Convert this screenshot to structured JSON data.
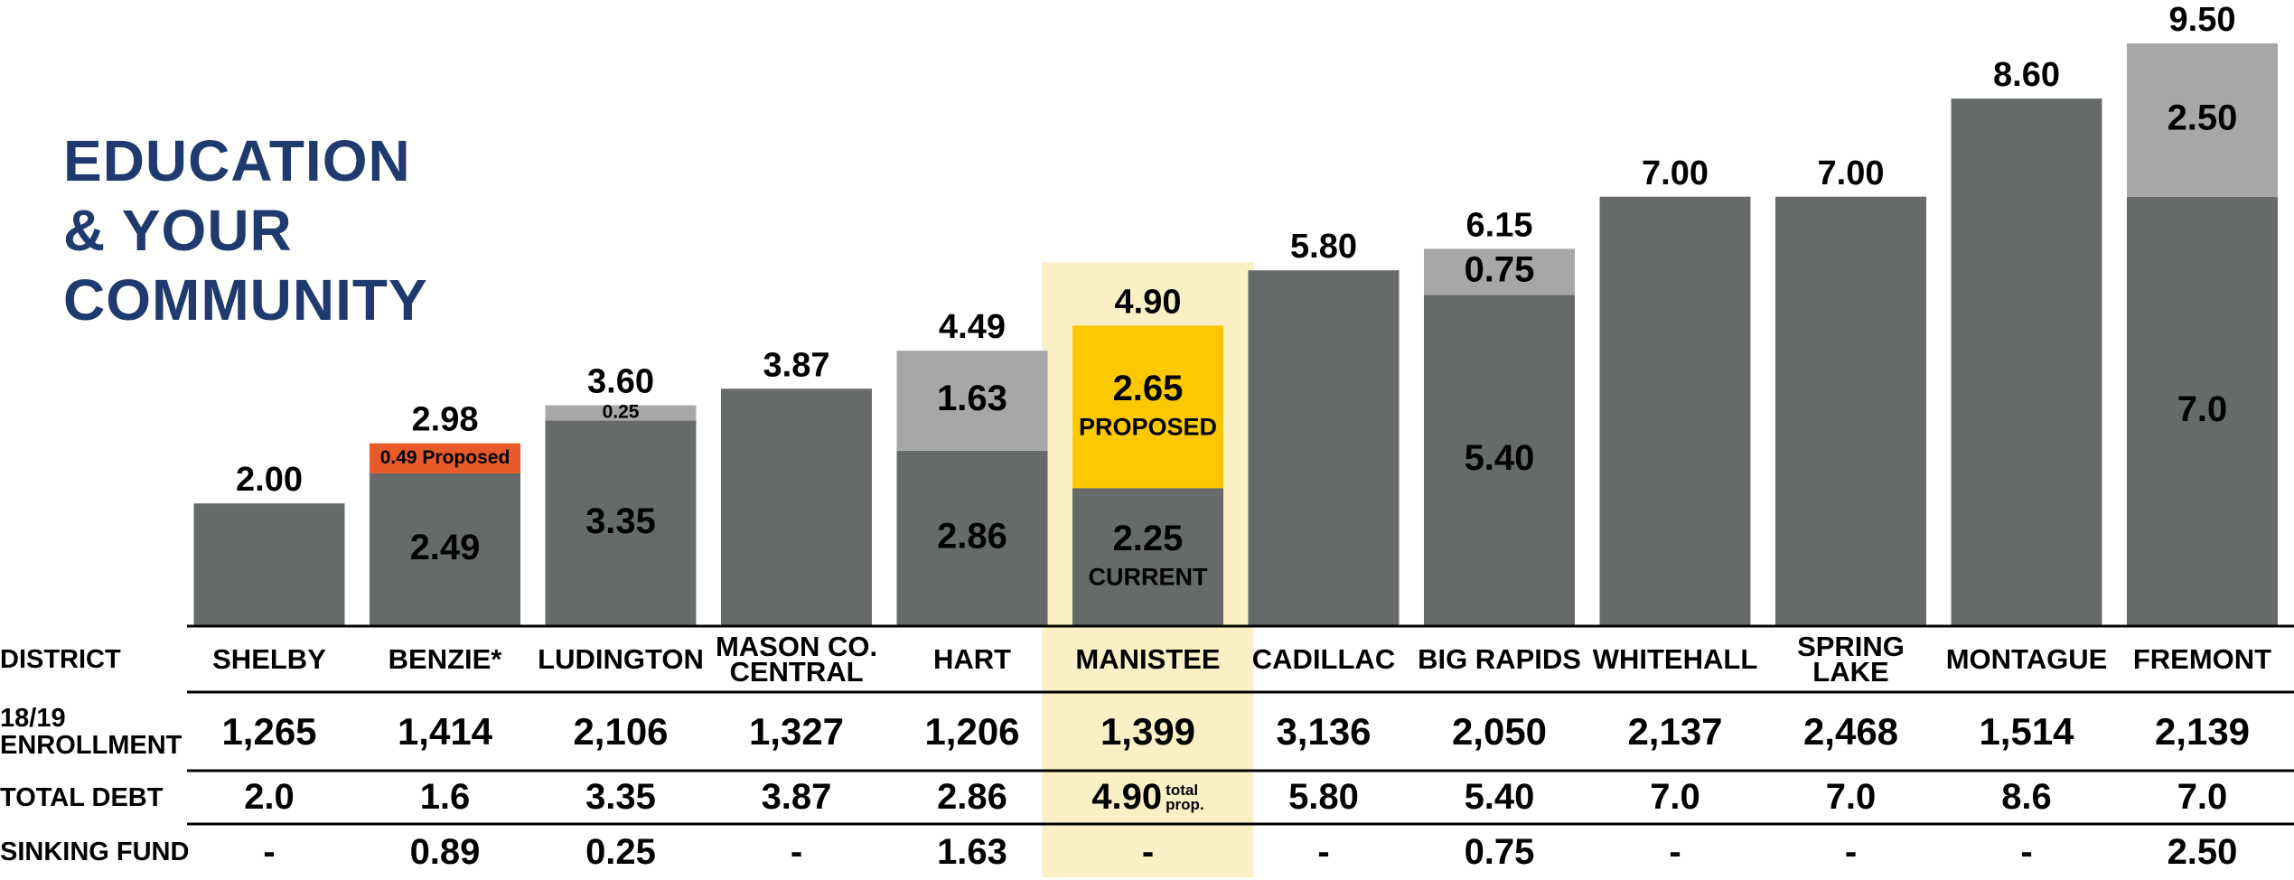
{
  "title": "EDUCATION\n& YOUR\nCOMMUNITY",
  "chart_data": {
    "type": "bar",
    "stacked": true,
    "categories": [
      "SHELBY",
      "BENZIE*",
      "LUDINGTON",
      "MASON CO.\nCENTRAL",
      "HART",
      "MANISTEE",
      "CADILLAC",
      "BIG RAPIDS",
      "WHITEHALL",
      "SPRING\nLAKE",
      "MONTAGUE",
      "FREMONT"
    ],
    "totals": [
      "2.00",
      "2.98",
      "3.60",
      "3.87",
      "4.49",
      "4.90",
      "5.80",
      "6.15",
      "7.00",
      "7.00",
      "8.60",
      "9.50"
    ],
    "series": [
      {
        "color": "#666b6a",
        "label_color": "#000000",
        "values": [
          2.0,
          2.49,
          3.35,
          3.87,
          2.86,
          2.25,
          5.8,
          5.4,
          7.0,
          7.0,
          8.6,
          7.0
        ],
        "value_labels": [
          null,
          "2.49",
          "3.35",
          null,
          "2.86",
          "2.25",
          null,
          "5.40",
          null,
          null,
          null,
          "7.0"
        ],
        "notes": [
          null,
          null,
          null,
          null,
          null,
          "CURRENT",
          null,
          null,
          null,
          null,
          null,
          null
        ]
      },
      {
        "color": "#a7a7aa",
        "colors": [
          null,
          "#e85a2a",
          null,
          null,
          null,
          "#fcc800",
          null,
          null,
          null,
          null,
          null,
          null
        ],
        "label_color": "#000000",
        "values": [
          null,
          0.49,
          0.25,
          null,
          1.63,
          2.65,
          null,
          0.75,
          null,
          null,
          null,
          2.5
        ],
        "value_labels": [
          null,
          "0.49 Proposed",
          "0.25",
          null,
          "1.63",
          "2.65",
          null,
          "0.75",
          null,
          null,
          null,
          "2.50"
        ],
        "notes": [
          null,
          null,
          null,
          null,
          null,
          "PROPOSED",
          null,
          null,
          null,
          null,
          null,
          null
        ]
      }
    ],
    "highlight": 5,
    "highlight_color": "#fbefc5"
  },
  "table": {
    "row_headers": [
      "DISTRICT",
      "18/19\nENROLLMENT",
      "TOTAL DEBT",
      "SINKING FUND"
    ],
    "enrollment": [
      "1,265",
      "1,414",
      "2,106",
      "1,327",
      "1,206",
      "1,399",
      "3,136",
      "2,050",
      "2,137",
      "2,468",
      "1,514",
      "2,139"
    ],
    "total_debt": [
      "2.0",
      "1.6",
      "3.35",
      "3.87",
      "2.86",
      "4.90",
      "5.80",
      "5.40",
      "7.0",
      "7.0",
      "8.6",
      "7.0"
    ],
    "total_debt_notes": [
      null,
      null,
      null,
      null,
      null,
      "total\nprop.",
      null,
      null,
      null,
      null,
      null,
      null
    ],
    "sinking_fund": [
      "-",
      "0.89",
      "0.25",
      "-",
      "1.63",
      "-",
      "-",
      "0.75",
      "-",
      "-",
      "-",
      "2.50"
    ]
  }
}
